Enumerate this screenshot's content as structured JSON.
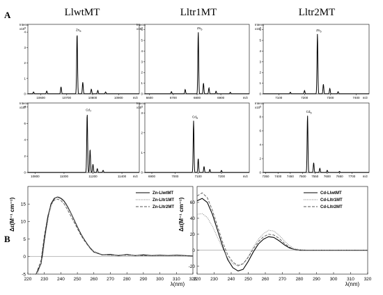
{
  "figure": {
    "panel_a_label": "A",
    "panel_b_label": "B",
    "column_titles": [
      "LlwtMT",
      "Lltr1MT",
      "Lltr2MT"
    ],
    "ms_y_axis_title": "Intens.",
    "ms_x_axis_unit": "m/z"
  },
  "chart_data": [
    {
      "type": "line",
      "panel": "A",
      "column": "LlwtMT",
      "metal": "Zn",
      "title": "",
      "peak_label": "Zn",
      "peak_subscript": "5",
      "multiplier": "x10",
      "multiplier_exp": "5",
      "xlim": [
        10550,
        10980
      ],
      "ylim": [
        0,
        4.5
      ],
      "xticks": [
        10600,
        10700,
        10800,
        10900
      ],
      "yticks": [
        0,
        1,
        2,
        3,
        4
      ],
      "peaks": [
        [
          10572,
          0.12
        ],
        [
          10623,
          0.18
        ],
        [
          10678,
          0.45
        ],
        [
          10740,
          3.9
        ],
        [
          10762,
          0.75
        ],
        [
          10795,
          0.3
        ],
        [
          10820,
          0.22
        ],
        [
          10850,
          0.12
        ]
      ]
    },
    {
      "type": "line",
      "panel": "A",
      "column": "Lltr1MT",
      "metal": "Zn",
      "title": "",
      "peak_label": "Zn",
      "peak_subscript": "5",
      "multiplier": "x10",
      "multiplier_exp": "5",
      "xlim": [
        6580,
        7020
      ],
      "ylim": [
        0,
        6.5
      ],
      "xticks": [
        6600,
        6700,
        6800,
        6900
      ],
      "yticks": [
        0,
        1,
        2,
        3,
        4,
        5,
        6
      ],
      "peaks": [
        [
          6692,
          0.2
        ],
        [
          6750,
          0.4
        ],
        [
          6805,
          5.8
        ],
        [
          6827,
          1.0
        ],
        [
          6850,
          0.55
        ],
        [
          6880,
          0.25
        ],
        [
          6940,
          0.15
        ]
      ]
    },
    {
      "type": "line",
      "panel": "A",
      "column": "Lltr2MT",
      "metal": "Zn",
      "title": "",
      "peak_label": "Zn",
      "peak_subscript": "5",
      "multiplier": "x10",
      "multiplier_exp": "5",
      "xlim": [
        7040,
        7450
      ],
      "ylim": [
        0,
        6.5
      ],
      "xticks": [
        7100,
        7200,
        7300,
        7400
      ],
      "yticks": [
        0,
        1,
        2,
        3,
        4,
        5,
        6
      ],
      "peaks": [
        [
          7145,
          0.15
        ],
        [
          7200,
          0.3
        ],
        [
          7250,
          5.6
        ],
        [
          7273,
          0.9
        ],
        [
          7298,
          0.5
        ],
        [
          7330,
          0.2
        ]
      ]
    },
    {
      "type": "line",
      "panel": "A",
      "column": "LlwtMT",
      "metal": "Cd",
      "title": "",
      "peak_label": "Cd",
      "peak_subscript": "7",
      "multiplier": "x10",
      "multiplier_exp": "4",
      "xlim": [
        10750,
        11520
      ],
      "ylim": [
        0,
        8.5
      ],
      "xticks": [
        10800,
        11000,
        11200,
        11400
      ],
      "yticks": [
        0,
        2,
        4,
        6,
        8
      ],
      "peaks": [
        [
          11160,
          7.2
        ],
        [
          11180,
          2.8
        ],
        [
          11200,
          1.0
        ],
        [
          11230,
          0.45
        ],
        [
          11270,
          0.25
        ]
      ]
    },
    {
      "type": "line",
      "panel": "A",
      "column": "Lltr1MT",
      "metal": "Cd",
      "title": "",
      "peak_label": "Cd",
      "peak_subscript": "5",
      "multiplier": "x10",
      "multiplier_exp": "5",
      "xlim": [
        6870,
        7320
      ],
      "ylim": [
        0,
        3.5
      ],
      "xticks": [
        6900,
        7000,
        7100,
        7200
      ],
      "yticks": [
        0,
        1,
        2,
        3
      ],
      "peaks": [
        [
          7080,
          2.6
        ],
        [
          7100,
          0.7
        ],
        [
          7125,
          0.3
        ],
        [
          7150,
          0.15
        ],
        [
          7200,
          0.1
        ]
      ]
    },
    {
      "type": "line",
      "panel": "A",
      "column": "Lltr2MT",
      "metal": "Cd",
      "title": "",
      "peak_label": "Cd",
      "peak_subscript": "5",
      "multiplier": "x10",
      "multiplier_exp": "5",
      "xlim": [
        7340,
        7770
      ],
      "ylim": [
        0,
        10
      ],
      "xticks": [
        7350,
        7400,
        7450,
        7500,
        7550,
        7600,
        7650,
        7700
      ],
      "yticks": [
        0,
        2,
        4,
        6,
        8
      ],
      "peaks": [
        [
          7520,
          8.2
        ],
        [
          7545,
          1.4
        ],
        [
          7570,
          0.6
        ],
        [
          7600,
          0.3
        ],
        [
          7650,
          0.15
        ]
      ]
    },
    {
      "type": "line",
      "panel": "B",
      "title": "",
      "xlabel": "λ(nm)",
      "ylabel": "Δε(M⁻¹ cm⁻¹)",
      "xlim": [
        220,
        320
      ],
      "ylim": [
        -5,
        20
      ],
      "xticks": [
        220,
        230,
        240,
        250,
        260,
        270,
        280,
        290,
        300,
        310,
        320
      ],
      "yticks": [
        -5,
        0,
        5,
        10,
        15
      ],
      "series": [
        {
          "name": "Zn-LlwtMT",
          "style": "solid",
          "color": "#000000",
          "x": [
            220,
            225,
            228,
            230,
            232,
            234,
            236,
            238,
            240,
            242,
            244,
            246,
            248,
            250,
            252,
            254,
            256,
            258,
            260,
            265,
            270,
            275,
            280,
            285,
            290,
            295,
            300,
            305,
            310,
            315,
            320
          ],
          "y": [
            -5,
            -5,
            -2,
            5,
            11,
            15,
            16.6,
            17,
            16.6,
            15.8,
            14.3,
            12.5,
            10.5,
            8.5,
            6.6,
            5.0,
            3.6,
            2.3,
            1.3,
            0.5,
            0.6,
            0.3,
            0.6,
            0.3,
            0.5,
            0.3,
            0.4,
            0.3,
            0.4,
            0.3,
            0.2
          ]
        },
        {
          "name": "Zn-Lltr1MT",
          "style": "dotted",
          "color": "#8a8a8a",
          "x": [
            220,
            226,
            229,
            231,
            233,
            235,
            237,
            239,
            241,
            243,
            245,
            247,
            249,
            251,
            253,
            255,
            257,
            260,
            265,
            270,
            280,
            290,
            300,
            310,
            320
          ],
          "y": [
            -5,
            -5,
            0,
            7,
            12.5,
            15.5,
            16.8,
            17,
            16.5,
            15.3,
            13.6,
            11.6,
            9.6,
            7.6,
            5.8,
            4.3,
            3.0,
            1.6,
            0.6,
            0.4,
            0.5,
            0.3,
            0.3,
            0.3,
            0.2
          ]
        },
        {
          "name": "Zn-Lltr2MT",
          "style": "dashed",
          "color": "#555555",
          "x": [
            220,
            225,
            228,
            230,
            232,
            234,
            236,
            238,
            240,
            242,
            244,
            246,
            248,
            250,
            252,
            254,
            256,
            258,
            260,
            265,
            270,
            280,
            290,
            300,
            310,
            320
          ],
          "y": [
            -5,
            -5,
            -1,
            6,
            11.5,
            14.8,
            16.1,
            16.4,
            16,
            15,
            13.4,
            11.6,
            9.8,
            8.0,
            6.2,
            4.7,
            3.4,
            2.2,
            1.3,
            0.5,
            0.4,
            0.4,
            0.3,
            0.3,
            0.3,
            0.2
          ]
        }
      ]
    },
    {
      "type": "line",
      "panel": "B",
      "title": "",
      "xlabel": "λ(nm)",
      "ylabel": "Δε(M⁻¹ cm⁻¹)",
      "xlim": [
        220,
        320
      ],
      "ylim": [
        -30,
        80
      ],
      "xticks": [
        220,
        230,
        240,
        250,
        260,
        270,
        280,
        290,
        300,
        310,
        320
      ],
      "yticks": [
        -20,
        0,
        20,
        40,
        60
      ],
      "series": [
        {
          "name": "Cd-LlwtMT",
          "style": "solid",
          "color": "#000000",
          "x": [
            220,
            223,
            226,
            229,
            232,
            235,
            238,
            241,
            244,
            247,
            250,
            253,
            256,
            259,
            262,
            265,
            268,
            271,
            274,
            277,
            280,
            285,
            290,
            300,
            310,
            320
          ],
          "y": [
            62,
            65,
            60,
            45,
            25,
            5,
            -12,
            -22,
            -26,
            -24,
            -14,
            -2,
            8,
            14,
            17,
            16,
            12,
            7,
            3,
            1,
            0,
            0,
            0,
            0,
            0,
            0
          ]
        },
        {
          "name": "Cd-Lltr1MT",
          "style": "dotted",
          "color": "#8a8a8a",
          "x": [
            220,
            223,
            226,
            229,
            232,
            235,
            238,
            241,
            244,
            247,
            250,
            253,
            256,
            259,
            262,
            265,
            268,
            271,
            274,
            277,
            280,
            285,
            290,
            300,
            310,
            320
          ],
          "y": [
            45,
            46,
            41,
            30,
            16,
            2,
            -10,
            -17,
            -20,
            -17,
            -8,
            4,
            14,
            21,
            25,
            24,
            19,
            12,
            6,
            2,
            1,
            0,
            0,
            0,
            0,
            0
          ]
        },
        {
          "name": "Cd-Lltr2MT",
          "style": "dashed",
          "color": "#555555",
          "x": [
            220,
            223,
            226,
            229,
            232,
            235,
            238,
            241,
            244,
            247,
            250,
            253,
            256,
            259,
            262,
            265,
            268,
            271,
            274,
            277,
            280,
            285,
            290,
            300,
            310,
            320
          ],
          "y": [
            68,
            72,
            66,
            50,
            30,
            10,
            -6,
            -15,
            -19,
            -17,
            -9,
            2,
            11,
            17,
            20,
            19,
            15,
            9,
            4,
            1,
            0,
            0,
            0,
            0,
            0,
            0
          ]
        }
      ]
    }
  ]
}
